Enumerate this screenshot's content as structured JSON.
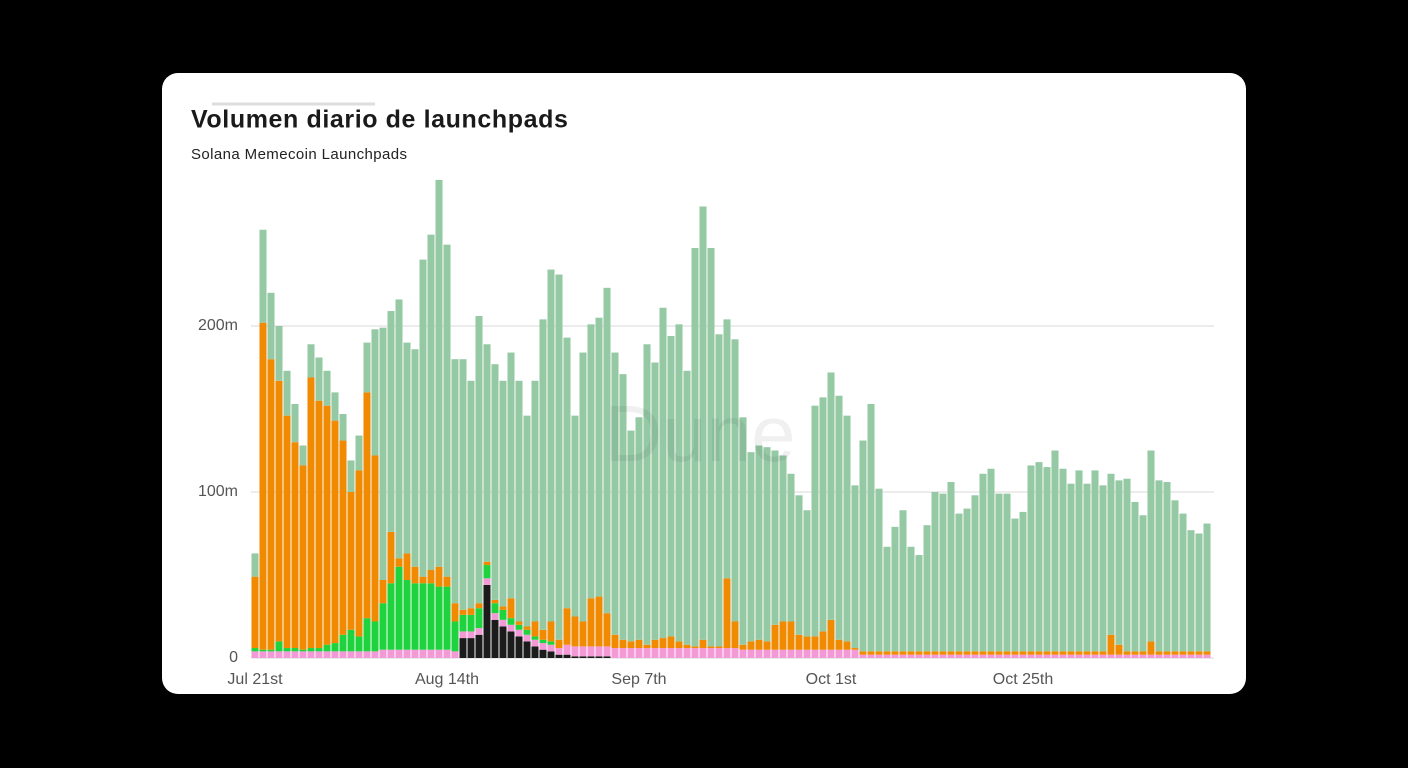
{
  "chart_data": {
    "type": "bar",
    "stacked": true,
    "title": "Volumen diario de launchpads",
    "subtitle": "Solana Memecoin Launchpads",
    "watermark": "Dune",
    "categories": [
      "Jul 21st",
      null,
      null,
      null,
      null,
      null,
      null,
      null,
      null,
      null,
      null,
      null,
      null,
      null,
      null,
      null,
      null,
      null,
      null,
      null,
      null,
      null,
      null,
      null,
      "Aug 14th",
      null,
      null,
      null,
      null,
      null,
      null,
      null,
      null,
      null,
      null,
      null,
      null,
      null,
      null,
      null,
      null,
      null,
      null,
      null,
      null,
      null,
      null,
      null,
      "Sep 7th",
      null,
      null,
      null,
      null,
      null,
      null,
      null,
      null,
      null,
      null,
      null,
      null,
      null,
      null,
      null,
      null,
      null,
      null,
      null,
      null,
      null,
      null,
      null,
      "Oct 1st",
      null,
      null,
      null,
      null,
      null,
      null,
      null,
      null,
      null,
      null,
      null,
      null,
      null,
      null,
      null,
      null,
      null,
      null,
      null,
      null,
      null,
      null,
      null,
      "Oct 25th",
      null,
      null,
      null,
      null,
      null,
      null,
      null,
      null,
      null,
      null,
      null,
      null,
      null,
      null,
      null,
      null,
      null,
      null,
      null,
      null,
      null,
      null,
      null
    ],
    "series": [
      {
        "color": "#1b1b1b",
        "values": [
          0,
          0,
          0,
          0,
          0,
          0,
          0,
          0,
          0,
          0,
          0,
          0,
          0,
          0,
          0,
          0,
          0,
          0,
          0,
          0,
          0,
          0,
          0,
          0,
          0,
          0,
          12,
          12,
          14,
          44,
          23,
          19,
          16,
          13,
          10,
          7,
          5,
          4,
          2,
          2,
          1,
          1,
          1,
          1,
          1,
          0,
          0,
          0,
          0,
          0,
          0,
          0,
          0,
          0,
          0,
          0,
          0,
          0,
          0,
          0,
          0,
          0,
          0,
          0,
          0,
          0,
          0,
          0,
          0,
          0,
          0,
          0,
          0,
          0,
          0,
          0,
          0,
          0,
          0,
          0,
          0,
          0,
          0,
          0,
          0,
          0,
          0,
          0,
          0,
          0,
          0,
          0,
          0,
          0,
          0,
          0,
          0,
          0,
          0,
          0,
          0,
          0,
          0,
          0,
          0,
          0,
          0,
          0,
          0,
          0,
          0,
          0,
          0,
          0,
          0,
          0,
          0,
          0,
          0,
          0
        ]
      },
      {
        "color": "#f39ad6",
        "values": [
          4,
          4,
          4,
          4,
          4,
          4,
          4,
          4,
          4,
          4,
          4,
          4,
          4,
          4,
          4,
          4,
          5,
          5,
          5,
          5,
          5,
          5,
          5,
          5,
          5,
          4,
          4,
          4,
          4,
          4,
          4,
          4,
          4,
          4,
          4,
          4,
          4,
          4,
          4,
          6,
          6,
          6,
          6,
          6,
          6,
          6,
          6,
          6,
          6,
          6,
          6,
          6,
          6,
          6,
          6,
          6,
          6,
          6,
          6,
          6,
          6,
          5,
          5,
          5,
          5,
          5,
          5,
          5,
          5,
          5,
          5,
          5,
          5,
          5,
          5,
          5,
          2,
          2,
          2,
          2,
          2,
          2,
          2,
          2,
          2,
          2,
          2,
          2,
          2,
          2,
          2,
          2,
          2,
          2,
          2,
          2,
          2,
          2,
          2,
          2,
          2,
          2,
          2,
          2,
          2,
          2,
          2,
          2,
          2,
          2,
          2,
          2,
          2,
          2,
          2,
          2,
          2,
          2,
          2,
          2
        ]
      },
      {
        "color": "#1fd33f",
        "values": [
          2,
          1,
          1,
          6,
          2,
          2,
          1,
          2,
          2,
          4,
          5,
          10,
          13,
          9,
          20,
          18,
          28,
          40,
          50,
          42,
          40,
          40,
          40,
          38,
          38,
          18,
          10,
          10,
          12,
          8,
          6,
          6,
          4,
          3,
          3,
          2,
          2,
          2,
          0,
          0,
          0,
          0,
          0,
          0,
          0,
          0,
          0,
          0,
          0,
          0,
          0,
          0,
          0,
          0,
          0,
          0,
          0,
          0,
          0,
          0,
          0,
          0,
          0,
          0,
          0,
          0,
          0,
          0,
          0,
          0,
          0,
          0,
          0,
          0,
          0,
          0,
          0,
          0,
          0,
          0,
          0,
          0,
          0,
          0,
          0,
          0,
          0,
          0,
          0,
          0,
          0,
          0,
          0,
          0,
          0,
          0,
          0,
          0,
          0,
          0,
          0,
          0,
          0,
          0,
          0,
          0,
          0,
          0,
          0,
          0,
          0,
          0,
          0,
          0,
          0,
          0,
          0,
          0,
          0,
          0
        ]
      },
      {
        "color": "#f08a00",
        "values": [
          43,
          197,
          175,
          157,
          140,
          124,
          111,
          163,
          149,
          144,
          134,
          117,
          83,
          100,
          136,
          100,
          14,
          31,
          5,
          16,
          10,
          4,
          8,
          12,
          6,
          11,
          3,
          4,
          3,
          2,
          2,
          2,
          12,
          2,
          2,
          9,
          6,
          12,
          5,
          22,
          18,
          15,
          29,
          30,
          20,
          8,
          5,
          4,
          5,
          2,
          5,
          6,
          7,
          4,
          2,
          1,
          5,
          1,
          1,
          42,
          16,
          3,
          5,
          6,
          5,
          15,
          17,
          17,
          9,
          8,
          8,
          11,
          18,
          6,
          5,
          1,
          2,
          2,
          2,
          2,
          2,
          2,
          2,
          2,
          2,
          2,
          2,
          2,
          2,
          2,
          2,
          2,
          2,
          2,
          2,
          2,
          2,
          2,
          2,
          2,
          2,
          2,
          2,
          2,
          2,
          2,
          2,
          12,
          6,
          2,
          2,
          2,
          8,
          2,
          2,
          2,
          2,
          2,
          2,
          2
        ]
      },
      {
        "color": "#94c9a4",
        "values": [
          14,
          56,
          40,
          33,
          27,
          23,
          12,
          20,
          26,
          21,
          17,
          16,
          19,
          21,
          30,
          76,
          152,
          133,
          156,
          127,
          131,
          191,
          202,
          233,
          200,
          147,
          151,
          137,
          173,
          131,
          142,
          136,
          148,
          145,
          127,
          145,
          187,
          212,
          220,
          163,
          121,
          162,
          165,
          168,
          196,
          170,
          160,
          127,
          134,
          181,
          167,
          199,
          181,
          191,
          165,
          240,
          261,
          240,
          188,
          156,
          170,
          137,
          114,
          117,
          117,
          105,
          100,
          89,
          84,
          76,
          139,
          141,
          149,
          147,
          136,
          98,
          127,
          149,
          98,
          63,
          75,
          85,
          63,
          58,
          76,
          96,
          95,
          102,
          83,
          86,
          94,
          107,
          110,
          95,
          95,
          80,
          84,
          112,
          114,
          111,
          121,
          110,
          101,
          109,
          101,
          109,
          100,
          97,
          99,
          104,
          90,
          82,
          115,
          103,
          102,
          91,
          83,
          73,
          71,
          77
        ]
      }
    ],
    "ylim": [
      0,
      300
    ],
    "yticks": [
      0,
      {
        "value": 100,
        "label": "100m"
      },
      {
        "value": 200,
        "label": "200m"
      }
    ],
    "grid": true
  }
}
